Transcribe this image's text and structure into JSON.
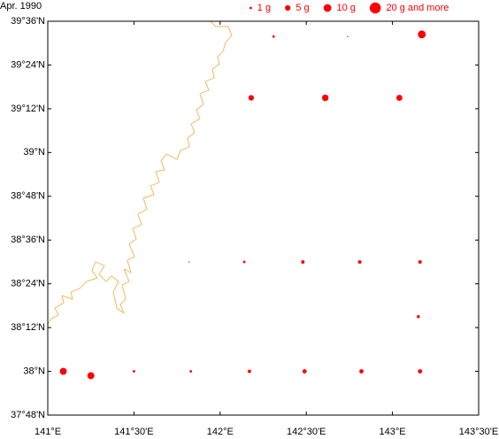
{
  "chart_data": {
    "type": "bubble-map",
    "title": "Apr. 1990",
    "x": [
      143.17,
      142.31,
      142.74,
      142.18,
      142.61,
      143.04,
      141.82,
      142.14,
      142.48,
      142.81,
      143.16,
      143.15,
      141.09,
      141.25,
      141.5,
      141.83,
      142.17,
      142.49,
      142.82,
      143.16
    ],
    "y": [
      39.54,
      39.53,
      39.53,
      39.25,
      39.25,
      39.25,
      38.5,
      38.5,
      38.5,
      38.5,
      38.5,
      38.25,
      38.0,
      37.98,
      38.0,
      38.0,
      38.0,
      38.0,
      38.0,
      38.0
    ],
    "sizes": [
      10,
      1,
      0,
      5,
      7,
      6,
      0,
      1,
      2,
      2,
      2,
      1.5,
      8,
      8,
      1,
      1,
      2,
      3,
      3,
      3
    ],
    "color": "#ff0000",
    "zero_color": "#4a6ad0",
    "legend": [
      {
        "label": "1 g",
        "size": 1
      },
      {
        "label": "5 g",
        "size": 5
      },
      {
        "label": "10 g",
        "size": 10
      },
      {
        "label": "20 g and more",
        "size": 20
      }
    ],
    "xlim": [
      141,
      143.5
    ],
    "xticks": [
      {
        "value": 141,
        "label": "141°E"
      },
      {
        "value": 141.5,
        "label": "141°30'E"
      },
      {
        "value": 142,
        "label": "142°E"
      },
      {
        "value": 142.5,
        "label": "142°30'E"
      },
      {
        "value": 143,
        "label": "143°E"
      },
      {
        "value": 143.5,
        "label": "143°30'E"
      }
    ],
    "ylim": [
      37.8,
      39.6
    ],
    "yticks": [
      {
        "value": 37.8,
        "label": "37°48'N"
      },
      {
        "value": 38,
        "label": "38°N"
      },
      {
        "value": 38.2,
        "label": "38°12'N"
      },
      {
        "value": 38.4,
        "label": "38°24'N"
      },
      {
        "value": 38.6,
        "label": "38°36'N"
      },
      {
        "value": 38.8,
        "label": "38°48'N"
      },
      {
        "value": 39,
        "label": "39°N"
      },
      {
        "value": 39.2,
        "label": "39°12'N"
      },
      {
        "value": 39.4,
        "label": "39°24'N"
      },
      {
        "value": 39.6,
        "label": "39°36'N"
      }
    ]
  }
}
